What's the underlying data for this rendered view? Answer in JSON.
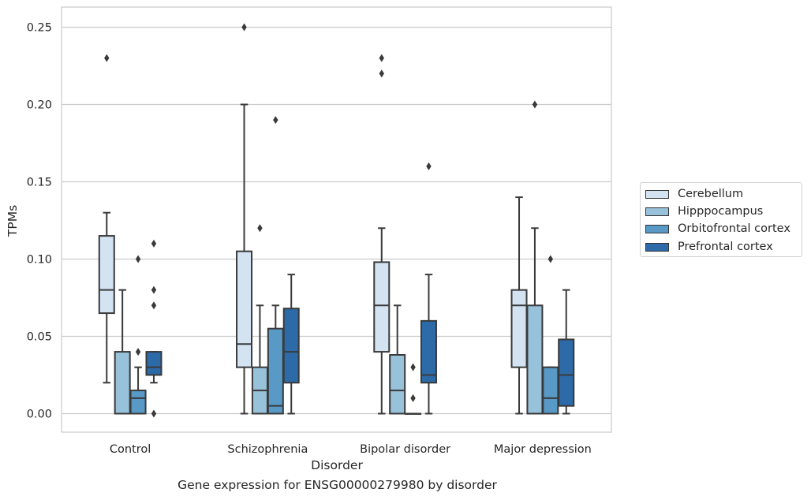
{
  "chart_data": {
    "type": "box",
    "xlabel": "Disorder",
    "ylabel": "TPMs",
    "caption": "Gene expression for ENSG00000279980 by disorder",
    "ylim": [
      -0.012,
      0.263
    ],
    "yticks": [
      "0.00",
      "0.05",
      "0.10",
      "0.15",
      "0.20",
      "0.25"
    ],
    "grid": "horizontal",
    "legend_position": "right",
    "categories": [
      "Control",
      "Schizophrenia",
      "Bipolar disorder",
      "Major depression"
    ],
    "series": [
      {
        "name": "Cerebellum",
        "color": "#d3e3f2",
        "boxes": [
          {
            "whislo": 0.02,
            "q1": 0.065,
            "med": 0.08,
            "q3": 0.115,
            "whishi": 0.13,
            "fliers": [
              0.23
            ]
          },
          {
            "whislo": 0.0,
            "q1": 0.03,
            "med": 0.045,
            "q3": 0.105,
            "whishi": 0.2,
            "fliers": [
              0.25
            ]
          },
          {
            "whislo": 0.0,
            "q1": 0.04,
            "med": 0.07,
            "q3": 0.098,
            "whishi": 0.12,
            "fliers": [
              0.22,
              0.23
            ]
          },
          {
            "whislo": 0.0,
            "q1": 0.03,
            "med": 0.07,
            "q3": 0.08,
            "whishi": 0.14,
            "fliers": []
          }
        ]
      },
      {
        "name": "Hipppocampus",
        "color": "#98c1da",
        "boxes": [
          {
            "whislo": 0.0,
            "q1": 0.0,
            "med": 0.0,
            "q3": 0.04,
            "whishi": 0.08,
            "fliers": []
          },
          {
            "whislo": 0.0,
            "q1": 0.0,
            "med": 0.015,
            "q3": 0.03,
            "whishi": 0.07,
            "fliers": [
              0.12
            ]
          },
          {
            "whislo": 0.0,
            "q1": 0.0,
            "med": 0.015,
            "q3": 0.038,
            "whishi": 0.07,
            "fliers": []
          },
          {
            "whislo": 0.0,
            "q1": 0.0,
            "med": 0.0,
            "q3": 0.07,
            "whishi": 0.12,
            "fliers": [
              0.2
            ]
          }
        ]
      },
      {
        "name": "Orbitofrontal cortex",
        "color": "#5899c5",
        "boxes": [
          {
            "whislo": 0.0,
            "q1": 0.0,
            "med": 0.01,
            "q3": 0.015,
            "whishi": 0.03,
            "fliers": [
              0.04,
              0.1
            ]
          },
          {
            "whislo": 0.0,
            "q1": 0.0,
            "med": 0.005,
            "q3": 0.055,
            "whishi": 0.07,
            "fliers": [
              0.19
            ]
          },
          {
            "whislo": 0.0,
            "q1": 0.0,
            "med": 0.0,
            "q3": 0.0,
            "whishi": 0.0,
            "fliers": [
              0.01,
              0.03
            ]
          },
          {
            "whislo": 0.0,
            "q1": 0.0,
            "med": 0.01,
            "q3": 0.03,
            "whishi": 0.03,
            "fliers": [
              0.1
            ]
          }
        ]
      },
      {
        "name": "Prefrontal cortex",
        "color": "#2c6aa8",
        "boxes": [
          {
            "whislo": 0.02,
            "q1": 0.025,
            "med": 0.03,
            "q3": 0.04,
            "whishi": 0.04,
            "fliers": [
              0.0,
              0.07,
              0.08,
              0.11
            ]
          },
          {
            "whislo": 0.0,
            "q1": 0.02,
            "med": 0.04,
            "q3": 0.068,
            "whishi": 0.09,
            "fliers": []
          },
          {
            "whislo": 0.0,
            "q1": 0.02,
            "med": 0.025,
            "q3": 0.06,
            "whishi": 0.09,
            "fliers": [
              0.16
            ]
          },
          {
            "whislo": 0.0,
            "q1": 0.005,
            "med": 0.025,
            "q3": 0.048,
            "whishi": 0.08,
            "fliers": []
          }
        ]
      }
    ]
  }
}
